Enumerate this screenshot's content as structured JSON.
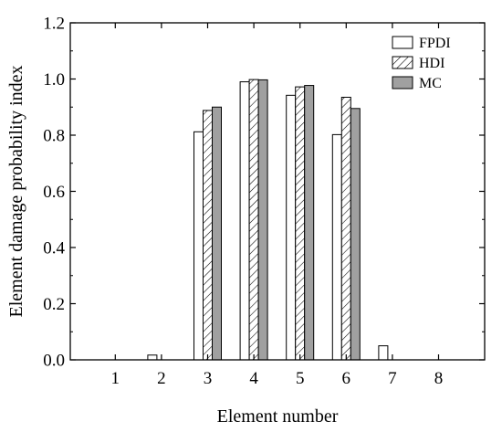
{
  "chart_data": {
    "type": "bar",
    "title": "",
    "xlabel": "Element number",
    "ylabel": "Element damage probability index",
    "categories": [
      "1",
      "2",
      "3",
      "4",
      "5",
      "6",
      "7",
      "8"
    ],
    "ylim": [
      0,
      1.2
    ],
    "yticks": [
      "0.0",
      "0.2",
      "0.4",
      "0.6",
      "0.8",
      "1.0",
      "1.2"
    ],
    "grid": false,
    "legend_position": "top-right",
    "series": [
      {
        "name": "FPDI",
        "fill": "#ffffff",
        "pattern": "none",
        "values": [
          0.0,
          0.017,
          0.812,
          0.99,
          0.942,
          0.802,
          0.05,
          0.0
        ]
      },
      {
        "name": "HDI",
        "fill": "#ffffff",
        "pattern": "hatch",
        "values": [
          0.0,
          0.0,
          0.888,
          0.998,
          0.972,
          0.935,
          0.0,
          0.0
        ]
      },
      {
        "name": "MC",
        "fill": "#a0a0a0",
        "pattern": "none",
        "values": [
          0.0,
          0.0,
          0.9,
          0.997,
          0.977,
          0.895,
          0.0,
          0.0
        ]
      }
    ]
  }
}
